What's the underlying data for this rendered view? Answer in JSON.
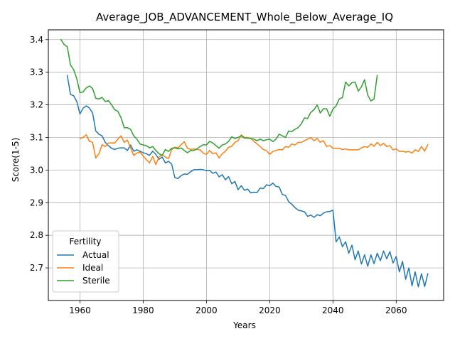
{
  "chart_data": {
    "type": "line",
    "title": "Average_JOB_ADVANCEMENT_Whole_Below_Average_IQ",
    "xlabel": "Years",
    "ylabel": "Score(1-5)",
    "xlim": [
      1950,
      2075
    ],
    "ylim": [
      2.6,
      3.43
    ],
    "xticks": [
      1960,
      1980,
      2000,
      2020,
      2040,
      2060
    ],
    "yticks": [
      2.7,
      2.8,
      2.9,
      3.0,
      3.1,
      3.2,
      3.3,
      3.4
    ],
    "grid": true,
    "legend": {
      "title": "Fertility",
      "position": "lower-left"
    },
    "series": [
      {
        "name": "Actual",
        "color": "#1f77b4",
        "x": [
          1956,
          1957,
          1958,
          1959,
          1960,
          1961,
          1962,
          1963,
          1964,
          1965,
          1966,
          1967,
          1968,
          1969,
          1970,
          1971,
          1972,
          1973,
          1974,
          1975,
          1976,
          1977,
          1978,
          1979,
          1980,
          1981,
          1982,
          1983,
          1984,
          1985,
          1986,
          1987,
          1988,
          1989,
          1990,
          1991,
          1992,
          1993,
          1994,
          1995,
          1996,
          1997,
          1998,
          1999,
          2000,
          2001,
          2002,
          2003,
          2004,
          2005,
          2006,
          2007,
          2008,
          2009,
          2010,
          2011,
          2012,
          2013,
          2014,
          2015,
          2016,
          2017,
          2018,
          2019,
          2020,
          2021,
          2022,
          2023,
          2024,
          2025,
          2026,
          2027,
          2028,
          2029,
          2030,
          2031,
          2032,
          2033,
          2034,
          2035,
          2036,
          2037,
          2038,
          2039,
          2040,
          2041,
          2042,
          2043,
          2044,
          2045,
          2046,
          2047,
          2048,
          2049,
          2050,
          2051,
          2052,
          2053,
          2054,
          2055,
          2056,
          2057,
          2058,
          2059,
          2060,
          2061,
          2062,
          2063,
          2064,
          2065,
          2066,
          2067,
          2068,
          2069,
          2070
        ],
        "values": [
          3.29,
          3.232,
          3.228,
          3.21,
          3.172,
          3.19,
          3.197,
          3.19,
          3.175,
          3.12,
          3.11,
          3.105,
          3.085,
          3.075,
          3.067,
          3.063,
          3.067,
          3.068,
          3.068,
          3.06,
          3.077,
          3.058,
          3.062,
          3.058,
          3.053,
          3.05,
          3.045,
          3.058,
          3.048,
          3.033,
          3.04,
          3.022,
          3.027,
          3.018,
          2.977,
          2.974,
          2.983,
          2.988,
          2.987,
          2.995,
          3.001,
          3.001,
          3.002,
          3.001,
          2.998,
          2.999,
          2.99,
          2.994,
          2.979,
          2.986,
          2.97,
          2.98,
          2.958,
          2.965,
          2.94,
          2.952,
          2.938,
          2.942,
          2.93,
          2.932,
          2.931,
          2.945,
          2.943,
          2.955,
          2.952,
          2.96,
          2.95,
          2.948,
          2.925,
          2.922,
          2.903,
          2.895,
          2.885,
          2.877,
          2.875,
          2.872,
          2.858,
          2.862,
          2.855,
          2.863,
          2.86,
          2.868,
          2.872,
          2.873,
          2.877,
          2.78,
          2.795,
          2.765,
          2.78,
          2.745,
          2.77,
          2.725,
          2.752,
          2.712,
          2.74,
          2.705,
          2.74,
          2.713,
          2.745,
          2.722,
          2.752,
          2.728,
          2.75,
          2.715,
          2.735,
          2.688,
          2.72,
          2.665,
          2.7,
          2.645,
          2.688,
          2.642,
          2.682,
          2.643,
          2.682
        ]
      },
      {
        "name": "Ideal",
        "color": "#ff7f0e",
        "x": [
          1960,
          1961,
          1962,
          1963,
          1964,
          1965,
          1966,
          1967,
          1968,
          1969,
          1970,
          1971,
          1972,
          1973,
          1974,
          1975,
          1976,
          1977,
          1978,
          1979,
          1980,
          1981,
          1982,
          1983,
          1984,
          1985,
          1986,
          1987,
          1988,
          1989,
          1990,
          1991,
          1992,
          1993,
          1994,
          1995,
          1996,
          1997,
          1998,
          1999,
          2000,
          2001,
          2002,
          2003,
          2004,
          2005,
          2006,
          2007,
          2008,
          2009,
          2010,
          2011,
          2012,
          2013,
          2014,
          2015,
          2016,
          2017,
          2018,
          2019,
          2020,
          2021,
          2022,
          2023,
          2024,
          2025,
          2026,
          2027,
          2028,
          2029,
          2030,
          2031,
          2032,
          2033,
          2034,
          2035,
          2036,
          2037,
          2038,
          2039,
          2040,
          2041,
          2042,
          2043,
          2044,
          2045,
          2046,
          2047,
          2048,
          2049,
          2050,
          2051,
          2052,
          2053,
          2054,
          2055,
          2056,
          2057,
          2058,
          2059,
          2060,
          2061,
          2062,
          2063,
          2064,
          2065,
          2066,
          2067,
          2068,
          2069,
          2070
        ],
        "values": [
          3.097,
          3.1,
          3.108,
          3.088,
          3.085,
          3.037,
          3.05,
          3.078,
          3.072,
          3.083,
          3.083,
          3.083,
          3.095,
          3.105,
          3.085,
          3.092,
          3.068,
          3.045,
          3.052,
          3.055,
          3.043,
          3.032,
          3.022,
          3.042,
          3.017,
          3.04,
          3.047,
          3.04,
          3.035,
          3.063,
          3.07,
          3.068,
          3.078,
          3.087,
          3.067,
          3.063,
          3.065,
          3.063,
          3.062,
          3.052,
          3.048,
          3.06,
          3.05,
          3.053,
          3.037,
          3.05,
          3.058,
          3.07,
          3.073,
          3.085,
          3.09,
          3.108,
          3.1,
          3.1,
          3.097,
          3.088,
          3.08,
          3.072,
          3.063,
          3.06,
          3.048,
          3.057,
          3.06,
          3.063,
          3.062,
          3.072,
          3.07,
          3.08,
          3.077,
          3.085,
          3.085,
          3.09,
          3.095,
          3.1,
          3.09,
          3.097,
          3.085,
          3.09,
          3.072,
          3.075,
          3.067,
          3.067,
          3.067,
          3.063,
          3.065,
          3.062,
          3.062,
          3.062,
          3.062,
          3.068,
          3.072,
          3.07,
          3.08,
          3.073,
          3.085,
          3.075,
          3.082,
          3.072,
          3.075,
          3.062,
          3.065,
          3.057,
          3.058,
          3.055,
          3.057,
          3.052,
          3.062,
          3.057,
          3.072,
          3.058,
          3.078
        ]
      },
      {
        "name": "Sterile",
        "color": "#2ca02c",
        "x": [
          1954,
          1955,
          1956,
          1957,
          1958,
          1959,
          1960,
          1961,
          1962,
          1963,
          1964,
          1965,
          1966,
          1967,
          1968,
          1969,
          1970,
          1971,
          1972,
          1973,
          1974,
          1975,
          1976,
          1977,
          1978,
          1979,
          1980,
          1981,
          1982,
          1983,
          1984,
          1985,
          1986,
          1987,
          1988,
          1989,
          1990,
          1991,
          1992,
          1993,
          1994,
          1995,
          1996,
          1997,
          1998,
          1999,
          2000,
          2001,
          2002,
          2003,
          2004,
          2005,
          2006,
          2007,
          2008,
          2009,
          2010,
          2011,
          2012,
          2013,
          2014,
          2015,
          2016,
          2017,
          2018,
          2019,
          2020,
          2021,
          2022,
          2023,
          2024,
          2025,
          2026,
          2027,
          2028,
          2029,
          2030,
          2031,
          2032,
          2033,
          2034,
          2035,
          2036,
          2037,
          2038,
          2039,
          2040,
          2041,
          2042,
          2043,
          2044,
          2045,
          2046,
          2047,
          2048,
          2049,
          2050,
          2051,
          2052,
          2053,
          2054
        ],
        "values": [
          3.4,
          3.385,
          3.378,
          3.322,
          3.308,
          3.28,
          3.237,
          3.24,
          3.252,
          3.258,
          3.25,
          3.22,
          3.218,
          3.223,
          3.21,
          3.213,
          3.2,
          3.185,
          3.18,
          3.16,
          3.13,
          3.13,
          3.125,
          3.105,
          3.095,
          3.08,
          3.077,
          3.075,
          3.068,
          3.072,
          3.06,
          3.05,
          3.045,
          3.063,
          3.057,
          3.067,
          3.068,
          3.065,
          3.068,
          3.06,
          3.053,
          3.06,
          3.06,
          3.065,
          3.072,
          3.078,
          3.077,
          3.088,
          3.083,
          3.075,
          3.067,
          3.077,
          3.08,
          3.088,
          3.102,
          3.097,
          3.1,
          3.105,
          3.098,
          3.098,
          3.097,
          3.095,
          3.09,
          3.095,
          3.09,
          3.093,
          3.095,
          3.087,
          3.095,
          3.11,
          3.105,
          3.1,
          3.12,
          3.118,
          3.125,
          3.13,
          3.142,
          3.16,
          3.158,
          3.177,
          3.185,
          3.2,
          3.175,
          3.188,
          3.188,
          3.165,
          3.187,
          3.197,
          3.218,
          3.222,
          3.27,
          3.258,
          3.268,
          3.27,
          3.242,
          3.255,
          3.277,
          3.23,
          3.212,
          3.218,
          3.29
        ]
      }
    ]
  }
}
